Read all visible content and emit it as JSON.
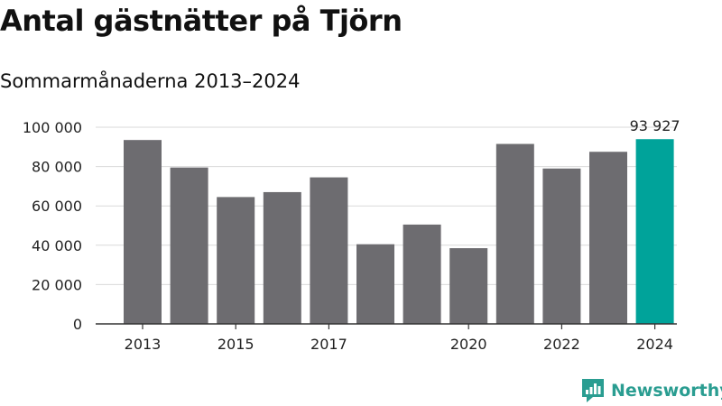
{
  "title": "Antal gästnätter på Tjörn",
  "subtitle": "Sommarmånaderna 2013–2024",
  "brand": "Newsworthy",
  "chart_data": {
    "type": "bar",
    "categories": [
      "2013",
      "2014",
      "2015",
      "2016",
      "2017",
      "2018",
      "2019",
      "2020",
      "2021",
      "2022",
      "2023",
      "2024"
    ],
    "values": [
      93500,
      79500,
      64500,
      67000,
      74500,
      40500,
      50500,
      38500,
      91500,
      79000,
      87500,
      93927
    ],
    "tick_labels_x": [
      "2013",
      "2015",
      "2017",
      "2020",
      "2022",
      "2024"
    ],
    "y_ticks": [
      0,
      20000,
      40000,
      60000,
      80000,
      100000
    ],
    "y_tick_labels": [
      "0",
      "20 000",
      "40 000",
      "60 000",
      "80 000",
      "100 000"
    ],
    "ylim": [
      0,
      100000
    ],
    "highlight_index": 11,
    "highlight_label": "93 927",
    "bar_color": "#6d6c70",
    "highlight_color": "#00a39a",
    "grid": true
  }
}
